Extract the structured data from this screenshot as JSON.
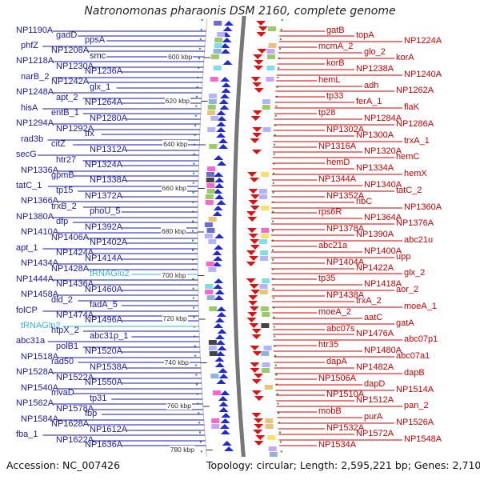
{
  "title": "Natronomonas pharaonis DSM 2160, complete genome",
  "accession": "Accession: NC_007426",
  "summary": "Topology: circular; Length: 2,595,221 bp; Genes: 2,710",
  "ticks": [
    "600 kbp",
    "620 kbp",
    "640 kbp",
    "660 kbp",
    "680 kbp",
    "700 kbp",
    "720 kbp",
    "740 kbp",
    "760 kbp",
    "780 kbp"
  ],
  "left_labels": [
    "NP1190A",
    "gadD",
    "ppsA",
    "phfZ",
    "NP1208A",
    "smc",
    "NP1218A",
    "NP1230A",
    "NP1236A",
    "narB_2",
    "NP1242A",
    "glx_1",
    "NP1248A",
    "apt_2",
    "NP1264A",
    "hisA",
    "entB_1",
    "NP1280A",
    "NP1294A",
    "NP1292A",
    "tfx",
    "rad3b",
    "citZ",
    "NP1312A",
    "secG",
    "htr27",
    "NP1324A",
    "NP1336A",
    "gpmB",
    "NP1338A",
    "tatC_1",
    "tp15",
    "NP1372A",
    "NP1366A",
    "trxB_2",
    "phoU_5",
    "NP1380A",
    "dfp",
    "NP1392A",
    "NP1410A",
    "NP1406A",
    "NP1402A",
    "apt_1",
    "NP1424A",
    "NP1414A",
    "NP1434A",
    "NP1428A",
    "tRNAGlu2",
    "NP1444A",
    "NP1436A",
    "NP1460A",
    "NP1458A",
    "dld_2",
    "fadA_5",
    "folCP",
    "NP1474A",
    "NP1496A",
    "tRNAGln2",
    "htpX_2",
    "abc31p_1",
    "abc31a",
    "polB1",
    "NP1520A",
    "NP1518A",
    "rad50",
    "NP1538A",
    "NP1528A",
    "NP1522A",
    "NP1550A",
    "NP1540A",
    "mvaD",
    "tp31",
    "NP1562A",
    "NP1578A",
    "fbp",
    "NP1584A",
    "NP1628A",
    "NP1612A",
    "fba_1",
    "NP1622A",
    "NP1636A"
  ],
  "right_labels": [
    "gatB",
    "topA",
    "NP1224A",
    "mcmA_2",
    "glo_2",
    "korA",
    "korB",
    "NP1238A",
    "NP1240A",
    "hemL",
    "adh",
    "NP1262A",
    "tp33",
    "ferA_1",
    "flaK",
    "tp28",
    "NP1284A",
    "NP1286A",
    "NP1302A",
    "NP1300A",
    "trxA_1",
    "NP1316A",
    "NP1320A",
    "hemC",
    "hemD",
    "NP1334A",
    "hemX",
    "NP1344A",
    "NP1340A",
    "tatC_2",
    "NP1352A",
    "ribC",
    "NP1360A",
    "rps6R",
    "NP1364A",
    "NP1376A",
    "NP1378A",
    "NP1390A",
    "abc21u",
    "abc21a",
    "NP1400A",
    "upp",
    "NP1404A",
    "NP1422A",
    "glx_2",
    "tp35",
    "NP1418A",
    "aor_2",
    "NP1438A",
    "trxA_2",
    "moeA_1",
    "moeA_2",
    "aatC",
    "gatA",
    "abc07s",
    "NP1476A",
    "abc07p1",
    "htr35",
    "NP1480A",
    "abc07a1",
    "dapA",
    "NP1482A",
    "dapB",
    "NP1506A",
    "dapD",
    "NP1514A",
    "NP1510A",
    "NP1512A",
    "pan_2",
    "mobB",
    "purA",
    "NP1526A",
    "NP1532A",
    "NP1572A",
    "NP1548A",
    "NP1534A"
  ]
}
